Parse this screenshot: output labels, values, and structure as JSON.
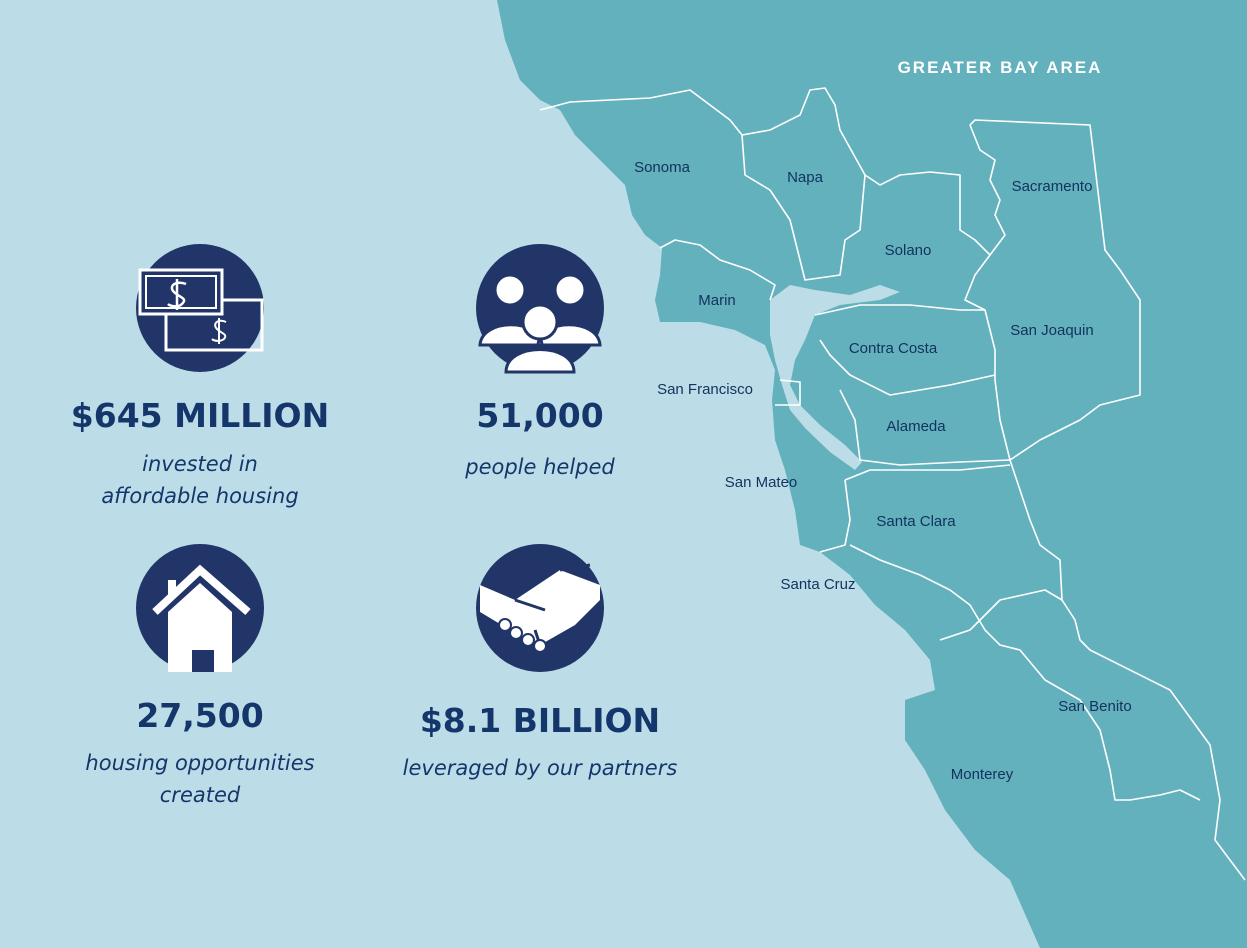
{
  "map": {
    "title": "GREATER BAY AREA",
    "counties": [
      "Sonoma",
      "Napa",
      "Sacramento",
      "Solano",
      "Marin",
      "San Joaquin",
      "Contra Costa",
      "San Francisco",
      "Alameda",
      "San Mateo",
      "Santa Clara",
      "Santa Cruz",
      "San Benito",
      "Monterey"
    ]
  },
  "stats": [
    {
      "value": "$645 MILLION",
      "caption": [
        "invested in",
        "affordable housing"
      ]
    },
    {
      "value": "51,000",
      "caption": [
        "people helped"
      ]
    },
    {
      "value": "27,500",
      "caption": [
        "housing opportunities",
        "created"
      ]
    },
    {
      "value": "$8.1 BILLION",
      "caption": [
        "leveraged by our partners"
      ]
    }
  ]
}
